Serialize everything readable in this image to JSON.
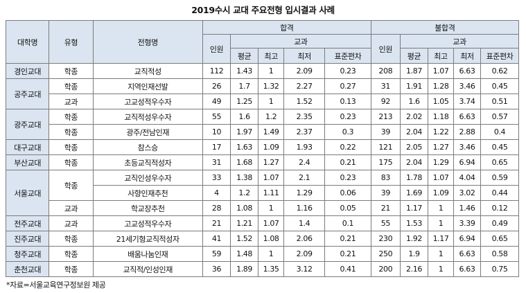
{
  "title": "2019수시 교대 주요전형 입시결과 사례",
  "headers": {
    "univ": "대학명",
    "type": "유형",
    "track": "전형명",
    "pass": "합격",
    "fail": "불합격",
    "grades": "교과",
    "count": "인원",
    "avg": "평균",
    "best": "최고",
    "worst": "최저",
    "sd": "표준편차"
  },
  "rows": [
    {
      "univ": "경인교대",
      "type": "학종",
      "track": "교직적성",
      "p": [
        "112",
        "1.43",
        "1",
        "2.09",
        "0.23"
      ],
      "f": [
        "208",
        "1.87",
        "1.07",
        "6.63",
        "0.62"
      ]
    },
    {
      "univ": "공주교대",
      "type": "학종",
      "track": "지역인재선발",
      "p": [
        "26",
        "1.7",
        "1.32",
        "2.27",
        "0.27"
      ],
      "f": [
        "31",
        "1.91",
        "1.28",
        "3.46",
        "0.45"
      ]
    },
    {
      "univ": "",
      "type": "교과",
      "track": "고교성적우수자",
      "p": [
        "49",
        "1.25",
        "1",
        "1.52",
        "0.13"
      ],
      "f": [
        "92",
        "1.6",
        "1.05",
        "3.74",
        "0.51"
      ]
    },
    {
      "univ": "광주교대",
      "type": "학종",
      "track": "교직적성우수자",
      "p": [
        "55",
        "1.6",
        "1.2",
        "2.35",
        "0.23"
      ],
      "f": [
        "213",
        "2.02",
        "1.18",
        "6.63",
        "0.57"
      ]
    },
    {
      "univ": "",
      "type": "학종",
      "track": "광주/전남인재",
      "p": [
        "10",
        "1.97",
        "1.49",
        "2.37",
        "0.3"
      ],
      "f": [
        "39",
        "2.04",
        "1.22",
        "2.88",
        "0.4"
      ]
    },
    {
      "univ": "대구교대",
      "type": "학종",
      "track": "참스승",
      "p": [
        "17",
        "1.63",
        "1.09",
        "1.93",
        "0.22"
      ],
      "f": [
        "121",
        "2.05",
        "1.27",
        "3.46",
        "0.45"
      ]
    },
    {
      "univ": "부산교대",
      "type": "학종",
      "track": "초등교직적성자",
      "p": [
        "31",
        "1.68",
        "1.27",
        "2.4",
        "0.21"
      ],
      "f": [
        "175",
        "2.04",
        "1.29",
        "6.94",
        "0.65"
      ]
    },
    {
      "univ": "서울교대",
      "type": "학종",
      "track": "교직인성우수자",
      "p": [
        "33",
        "1.38",
        "1.07",
        "2.1",
        "0.23"
      ],
      "f": [
        "83",
        "1.78",
        "1.07",
        "4.04",
        "0.59"
      ]
    },
    {
      "univ": "",
      "type": "",
      "track": "사향인재추천",
      "p": [
        "4",
        "1.2",
        "1.11",
        "1.29",
        "0.06"
      ],
      "f": [
        "39",
        "1.69",
        "1.09",
        "3.02",
        "0.44"
      ]
    },
    {
      "univ": "",
      "type": "교과",
      "track": "학교장추천",
      "p": [
        "28",
        "1.08",
        "1",
        "1.16",
        "0.05"
      ],
      "f": [
        "21",
        "1.17",
        "1",
        "1.46",
        "0.12"
      ]
    },
    {
      "univ": "전주교대",
      "type": "교과",
      "track": "고교성적우수자",
      "p": [
        "21",
        "1.21",
        "1.07",
        "1.4",
        "0.1"
      ],
      "f": [
        "55",
        "1.53",
        "1",
        "3.39",
        "0.49"
      ]
    },
    {
      "univ": "진주교대",
      "type": "학종",
      "track": "21세기형교직적성자",
      "p": [
        "41",
        "1.52",
        "1.08",
        "2.06",
        "0.21"
      ],
      "f": [
        "230",
        "1.92",
        "1.17",
        "6.94",
        "0.65"
      ]
    },
    {
      "univ": "청주교대",
      "type": "학종",
      "track": "배움나눔인재",
      "p": [
        "59",
        "1.48",
        "1",
        "2.09",
        "0.21"
      ],
      "f": [
        "250",
        "1.9",
        "1",
        "6.63",
        "0.58"
      ]
    },
    {
      "univ": "춘천교대",
      "type": "학종",
      "track": "교직적/인성인재",
      "p": [
        "36",
        "1.89",
        "1.35",
        "3.12",
        "0.41"
      ],
      "f": [
        "200",
        "2.16",
        "1",
        "6.63",
        "0.75"
      ]
    }
  ],
  "note": "*자료=서울교육연구정보원 제공",
  "colors": {
    "header_bg": "#dbe5f1",
    "border": "#7a7a7a"
  }
}
